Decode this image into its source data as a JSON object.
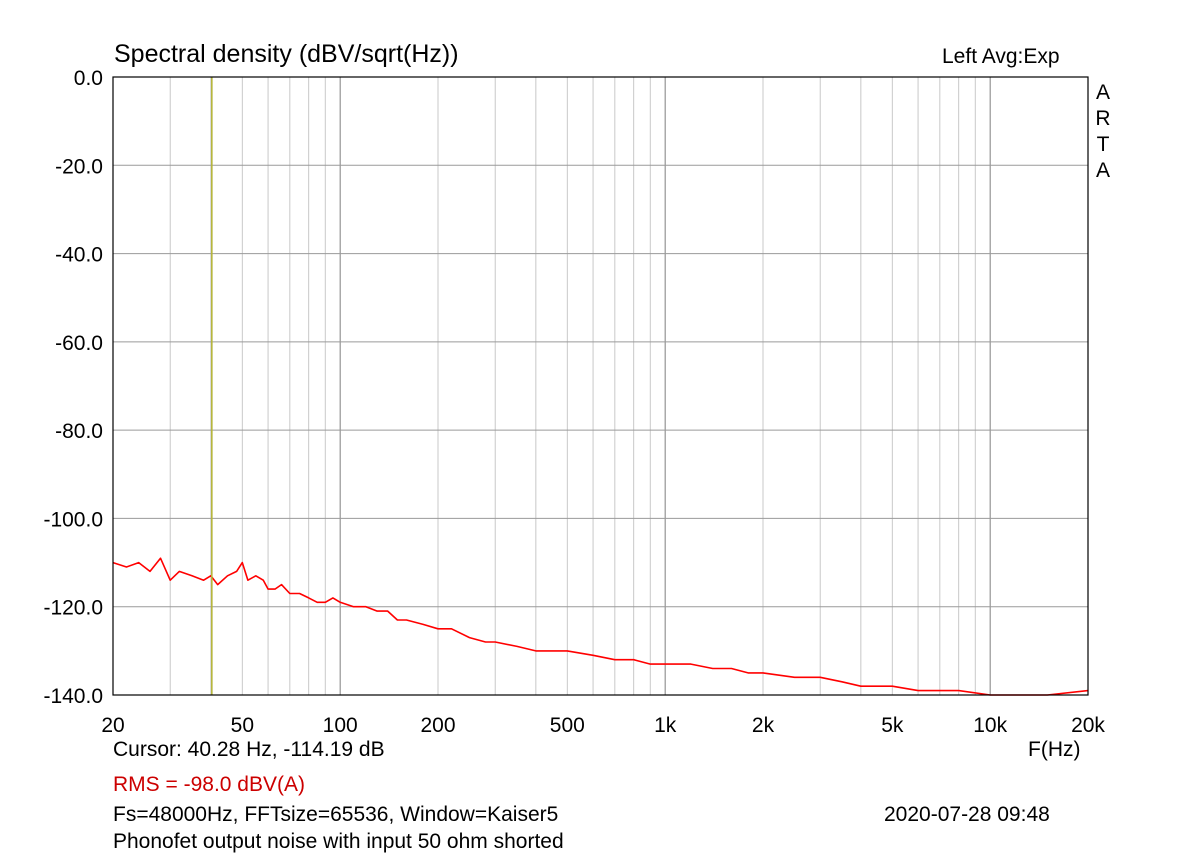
{
  "chart_data": {
    "type": "line",
    "title": "Spectral density (dBV/sqrt(Hz))",
    "xlabel": "F(Hz)",
    "x_scale": "log",
    "xlim": [
      20,
      20000
    ],
    "ylim": [
      -140,
      0
    ],
    "y_ticks": [
      "0.0",
      "-20.0",
      "-40.0",
      "-60.0",
      "-80.0",
      "-100.0",
      "-120.0",
      "-140.0"
    ],
    "y_tick_values": [
      0,
      -20,
      -40,
      -60,
      -80,
      -100,
      -120,
      -140
    ],
    "x_ticks": [
      "20",
      "50",
      "100",
      "200",
      "500",
      "1k",
      "2k",
      "5k",
      "10k",
      "20k"
    ],
    "x_tick_values": [
      20,
      50,
      100,
      200,
      500,
      1000,
      2000,
      5000,
      10000,
      20000
    ],
    "grid": true,
    "series": [
      {
        "color": "#ff0000",
        "x": [
          20,
          22,
          24,
          26,
          28,
          30,
          32,
          35,
          38,
          40,
          42,
          45,
          48,
          50,
          52,
          55,
          58,
          60,
          63,
          66,
          70,
          75,
          80,
          85,
          90,
          95,
          100,
          110,
          120,
          130,
          140,
          150,
          160,
          180,
          200,
          220,
          250,
          280,
          300,
          350,
          400,
          450,
          500,
          600,
          700,
          800,
          900,
          1000,
          1200,
          1400,
          1600,
          1800,
          2000,
          2500,
          3000,
          3500,
          4000,
          5000,
          6000,
          7000,
          8000,
          10000,
          12000,
          15000,
          20000
        ],
        "y": [
          -110,
          -111,
          -110,
          -112,
          -109,
          -114,
          -112,
          -113,
          -114,
          -113,
          -115,
          -113,
          -112,
          -110,
          -114,
          -113,
          -114,
          -116,
          -116,
          -115,
          -117,
          -117,
          -118,
          -119,
          -119,
          -118,
          -119,
          -120,
          -120,
          -121,
          -121,
          -123,
          -123,
          -124,
          -125,
          -125,
          -127,
          -128,
          -128,
          -129,
          -130,
          -130,
          -130,
          -131,
          -132,
          -132,
          -133,
          -133,
          -133,
          -134,
          -134,
          -135,
          -135,
          -136,
          -136,
          -137,
          -138,
          -138,
          -139,
          -139,
          -139,
          -140,
          -140,
          -140,
          -139
        ]
      }
    ],
    "cursor": {
      "x": 40.28,
      "color": "#b5b53c"
    }
  },
  "header": {
    "title": "Spectral density (dBV/sqrt(Hz))",
    "channel": "Left  Avg:Exp",
    "brand_letters": [
      "A",
      "R",
      "T",
      "A"
    ]
  },
  "footer": {
    "cursor_readout": "Cursor: 40.28 Hz, -114.19 dB",
    "x_unit": "F(Hz)",
    "rms": "RMS =  -98.0 dBV(A)",
    "fs_info": "Fs=48000Hz, FFTsize=65536, Window=Kaiser5",
    "timestamp": "2020-07-28  09:48",
    "caption": "Phonofet output noise with input 50 ohm shorted"
  }
}
